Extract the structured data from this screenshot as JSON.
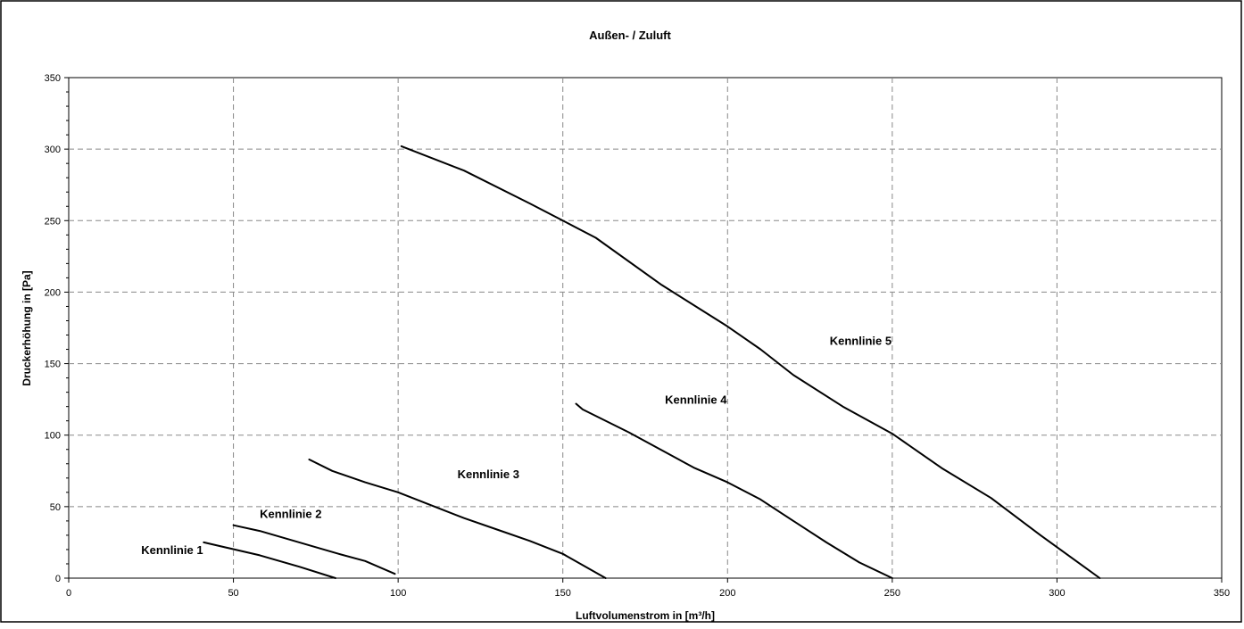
{
  "chart_data": {
    "type": "line",
    "title": "Außen- / Zuluft",
    "xlabel": "Luftvolumenstrom in [m³/h]",
    "ylabel": "Druckerhöhung in [Pa]",
    "xlim": [
      0,
      350
    ],
    "ylim": [
      0,
      350
    ],
    "xticks": [
      0,
      50,
      100,
      150,
      200,
      250,
      300,
      350
    ],
    "yticks": [
      0,
      50,
      100,
      150,
      200,
      250,
      300,
      350
    ],
    "grid": true,
    "grid_style": "dashed",
    "legend": "none",
    "line_color": "#000000",
    "series": [
      {
        "name": "Kennlinie 1",
        "label_at": [
          22,
          17
        ],
        "x": [
          41,
          58,
          70,
          81
        ],
        "y": [
          25,
          16,
          8,
          0
        ]
      },
      {
        "name": "Kennlinie 2",
        "label_at": [
          58,
          42
        ],
        "x": [
          50,
          58,
          70,
          82,
          90,
          99
        ],
        "y": [
          37,
          33,
          25,
          17,
          12,
          3
        ]
      },
      {
        "name": "Kennlinie 3",
        "label_at": [
          118,
          70
        ],
        "x": [
          73,
          80,
          90,
          100,
          110,
          120,
          130,
          140,
          150,
          163
        ],
        "y": [
          83,
          75,
          67,
          60,
          51,
          42,
          34,
          26,
          17,
          0
        ]
      },
      {
        "name": "Kennlinie 4",
        "label_at": [
          181,
          122
        ],
        "x": [
          154,
          156,
          170,
          190,
          200,
          210,
          220,
          230,
          240,
          250
        ],
        "y": [
          122,
          118,
          102,
          77,
          67,
          55,
          40,
          25,
          11,
          0
        ]
      },
      {
        "name": "Kennlinie 5",
        "label_at": [
          231,
          163
        ],
        "x": [
          101,
          120,
          140,
          150,
          160,
          180,
          200,
          210,
          220,
          235,
          250,
          265,
          280,
          295,
          313
        ],
        "y": [
          302,
          285,
          262,
          250,
          238,
          205,
          176,
          160,
          142,
          120,
          101,
          77,
          56,
          30,
          0
        ]
      }
    ]
  }
}
